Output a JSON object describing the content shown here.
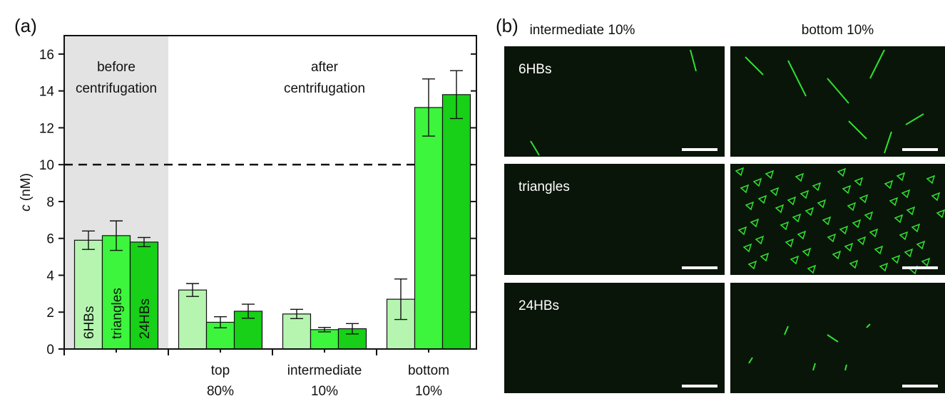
{
  "chart_data": {
    "type": "bar",
    "panel_label": "(a)",
    "y_label_italic": "c",
    "y_label": "(nM)",
    "categories": [
      null,
      [
        "top",
        "80%"
      ],
      [
        "intermediate",
        "10%"
      ],
      [
        "bottom",
        "10%"
      ]
    ],
    "series": [
      {
        "name": "6HBs",
        "color": "#b5f5b0",
        "values": [
          5.9,
          3.2,
          1.9,
          2.7
        ],
        "errors": [
          0.5,
          0.35,
          0.25,
          1.1
        ]
      },
      {
        "name": "triangles",
        "color": "#3cf53c",
        "values": [
          6.15,
          1.45,
          1.05,
          13.1
        ],
        "errors": [
          0.8,
          0.3,
          0.12,
          1.55
        ]
      },
      {
        "name": "24HBs",
        "color": "#17d017",
        "values": [
          5.8,
          2.05,
          1.1,
          13.8
        ],
        "errors": [
          0.25,
          0.38,
          0.28,
          1.3
        ]
      }
    ],
    "ylim": [
      0,
      17
    ],
    "yticks": [
      0,
      2,
      4,
      6,
      8,
      10,
      12,
      14,
      16
    ],
    "reference_line": 10,
    "annotations": [
      [
        "before",
        "centrifugation"
      ],
      [
        "after",
        "centrifugation"
      ]
    ]
  },
  "panel_b": {
    "label": "(b)",
    "columns": [
      "intermediate 10%",
      "bottom 10%"
    ],
    "rows": [
      "6HBs",
      "triangles",
      "24HBs"
    ]
  }
}
